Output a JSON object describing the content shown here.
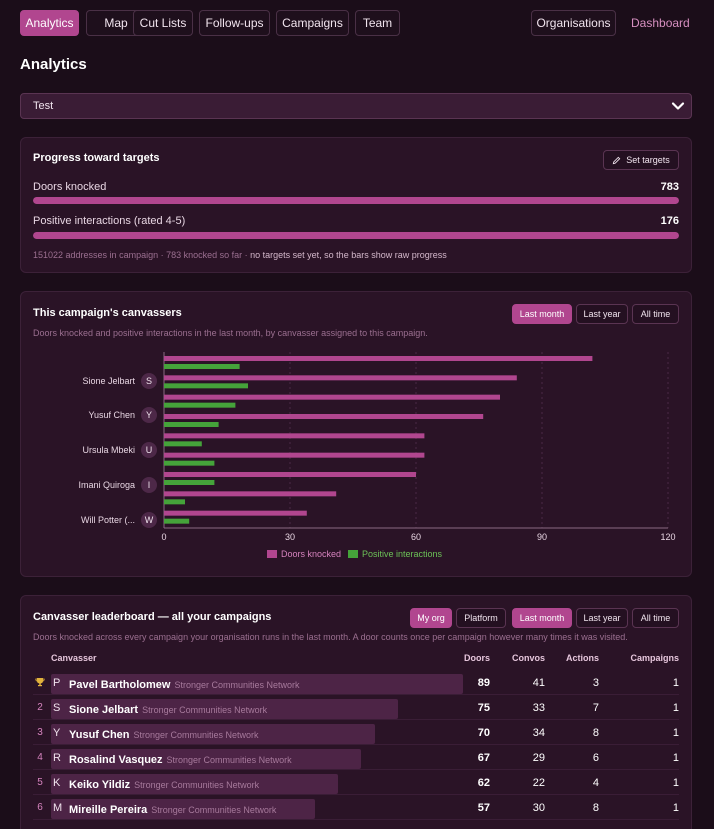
{
  "nav": {
    "tabs": [
      {
        "label": "Analytics",
        "active": true
      },
      {
        "label": "Map",
        "active": false
      },
      {
        "label": "Cut Lists",
        "active": false
      },
      {
        "label": "Follow-ups",
        "active": false
      },
      {
        "label": "Campaigns",
        "active": false
      },
      {
        "label": "Team",
        "active": false
      }
    ],
    "organisations": "Organisations",
    "dashboard": "Dashboard"
  },
  "page_title": "Analytics",
  "campaign_select": {
    "value": "Test"
  },
  "progress": {
    "title": "Progress toward targets",
    "set_targets": "Set targets",
    "doors": {
      "label": "Doors knocked",
      "value": "783",
      "fill": 1.0
    },
    "positive": {
      "label": "Positive interactions (rated 4-5)",
      "value": "176",
      "fill": 1.0
    },
    "footnote_prefix": "151022 addresses in campaign · 783 knocked so far · ",
    "footnote_emph": "no targets set yet, so the bars show raw progress"
  },
  "canvassers": {
    "title": "This campaign's canvassers",
    "subtitle": "Doors knocked and positive interactions in the last month, by canvasser assigned to this campaign.",
    "filters": [
      {
        "label": "Last month",
        "active": true
      },
      {
        "label": "Last year",
        "active": false
      },
      {
        "label": "All time",
        "active": false
      }
    ]
  },
  "chart_data": {
    "type": "bar",
    "orientation": "horizontal",
    "xlim": [
      0,
      120
    ],
    "xticks": [
      "0",
      "30",
      "60",
      "90",
      "120"
    ],
    "labeled_categories": [
      {
        "name": "Sione Jelbart",
        "initial": "S"
      },
      {
        "name": "Yusuf Chen",
        "initial": "Y"
      },
      {
        "name": "Ursula Mbeki",
        "initial": "U"
      },
      {
        "name": "Imani Quiroga",
        "initial": "I"
      },
      {
        "name": "Will Potter (...",
        "initial": "W"
      }
    ],
    "series": [
      {
        "name": "Doors knocked",
        "color": "#b1468f",
        "values": [
          102,
          84,
          80,
          76,
          62,
          62,
          60,
          41,
          34
        ]
      },
      {
        "name": "Positive interactions",
        "color": "#45a33a",
        "values": [
          18,
          20,
          17,
          13,
          9,
          12,
          12,
          5,
          6
        ]
      }
    ],
    "legend_position": "bottom",
    "grid": true
  },
  "leaderboard": {
    "title": "Canvasser leaderboard — all your campaigns",
    "subtitle": "Doors knocked across every campaign your organisation runs in the last month. A door counts once per campaign however many times it was visited.",
    "scope": [
      {
        "label": "My org",
        "active": true
      },
      {
        "label": "Platform",
        "active": false
      }
    ],
    "filters": [
      {
        "label": "Last month",
        "active": true
      },
      {
        "label": "Last year",
        "active": false
      },
      {
        "label": "All time",
        "active": false
      }
    ],
    "columns": {
      "canvasser": "Canvasser",
      "doors": "Doors",
      "convos": "Convos",
      "actions": "Actions",
      "campaigns": "Campaigns"
    },
    "rows": [
      {
        "rank": "",
        "initial": "P",
        "name": "Pavel Bartholomew",
        "org": "Stronger Communities Network",
        "doors": "89",
        "convos": "41",
        "actions": "3",
        "campaigns": "1",
        "bar": 1.0
      },
      {
        "rank": "2",
        "initial": "S",
        "name": "Sione Jelbart",
        "org": "Stronger Communities Network",
        "doors": "75",
        "convos": "33",
        "actions": "7",
        "campaigns": "1",
        "bar": 0.843
      },
      {
        "rank": "3",
        "initial": "Y",
        "name": "Yusuf Chen",
        "org": "Stronger Communities Network",
        "doors": "70",
        "convos": "34",
        "actions": "8",
        "campaigns": "1",
        "bar": 0.787
      },
      {
        "rank": "4",
        "initial": "R",
        "name": "Rosalind Vasquez",
        "org": "Stronger Communities Network",
        "doors": "67",
        "convos": "29",
        "actions": "6",
        "campaigns": "1",
        "bar": 0.753
      },
      {
        "rank": "5",
        "initial": "K",
        "name": "Keiko Yildiz",
        "org": "Stronger Communities Network",
        "doors": "62",
        "convos": "22",
        "actions": "4",
        "campaigns": "1",
        "bar": 0.697
      },
      {
        "rank": "6",
        "initial": "M",
        "name": "Mireille Pereira",
        "org": "Stronger Communities Network",
        "doors": "57",
        "convos": "30",
        "actions": "8",
        "campaigns": "1",
        "bar": 0.64
      }
    ]
  }
}
